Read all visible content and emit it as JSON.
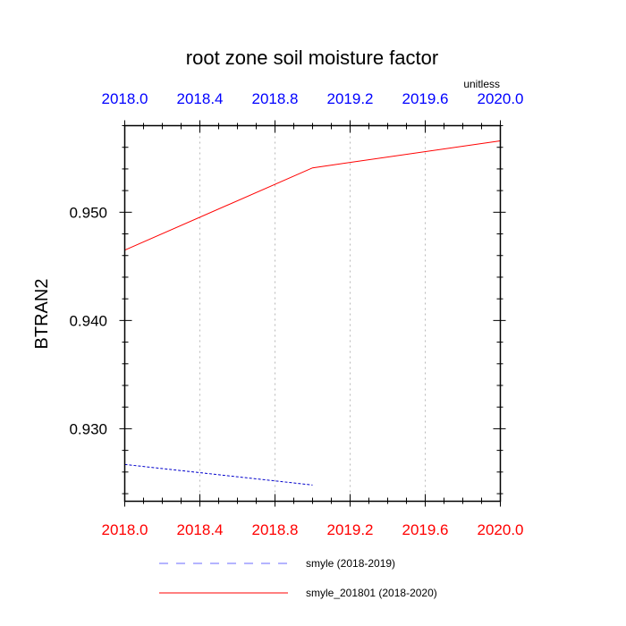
{
  "chart_data": {
    "type": "line",
    "title": "root zone soil moisture factor",
    "units_label": "unitless",
    "ylabel": "BTRAN2",
    "xlabel": "",
    "xlim": [
      2018.0,
      2020.0
    ],
    "ylim": [
      0.9233,
      0.958
    ],
    "x_ticks": [
      {
        "value": 2018.0,
        "label": "2018.0"
      },
      {
        "value": 2018.4,
        "label": "2018.4"
      },
      {
        "value": 2018.8,
        "label": "2018.8"
      },
      {
        "value": 2019.2,
        "label": "2019.2"
      },
      {
        "value": 2019.6,
        "label": "2019.6"
      },
      {
        "value": 2020.0,
        "label": "2020.0"
      }
    ],
    "y_ticks": [
      {
        "value": 0.93,
        "label": "0.930"
      },
      {
        "value": 0.94,
        "label": "0.940"
      },
      {
        "value": 0.95,
        "label": "0.950"
      }
    ],
    "grid_x": true,
    "top_axis_color": "#0000ff",
    "bottom_axis_color": "#ff0000",
    "legend_position": "bottom",
    "series": [
      {
        "name": "smyle (2018-2019)",
        "color": "#0000cc",
        "dash": "dashed",
        "x": [
          2018.0,
          2019.0
        ],
        "y": [
          0.9267,
          0.9248
        ]
      },
      {
        "name": "smyle_201801 (2018-2020)",
        "color": "#ff0000",
        "dash": "solid",
        "x": [
          2018.0,
          2019.0,
          2020.0
        ],
        "y": [
          0.9465,
          0.9541,
          0.9566
        ]
      }
    ]
  }
}
